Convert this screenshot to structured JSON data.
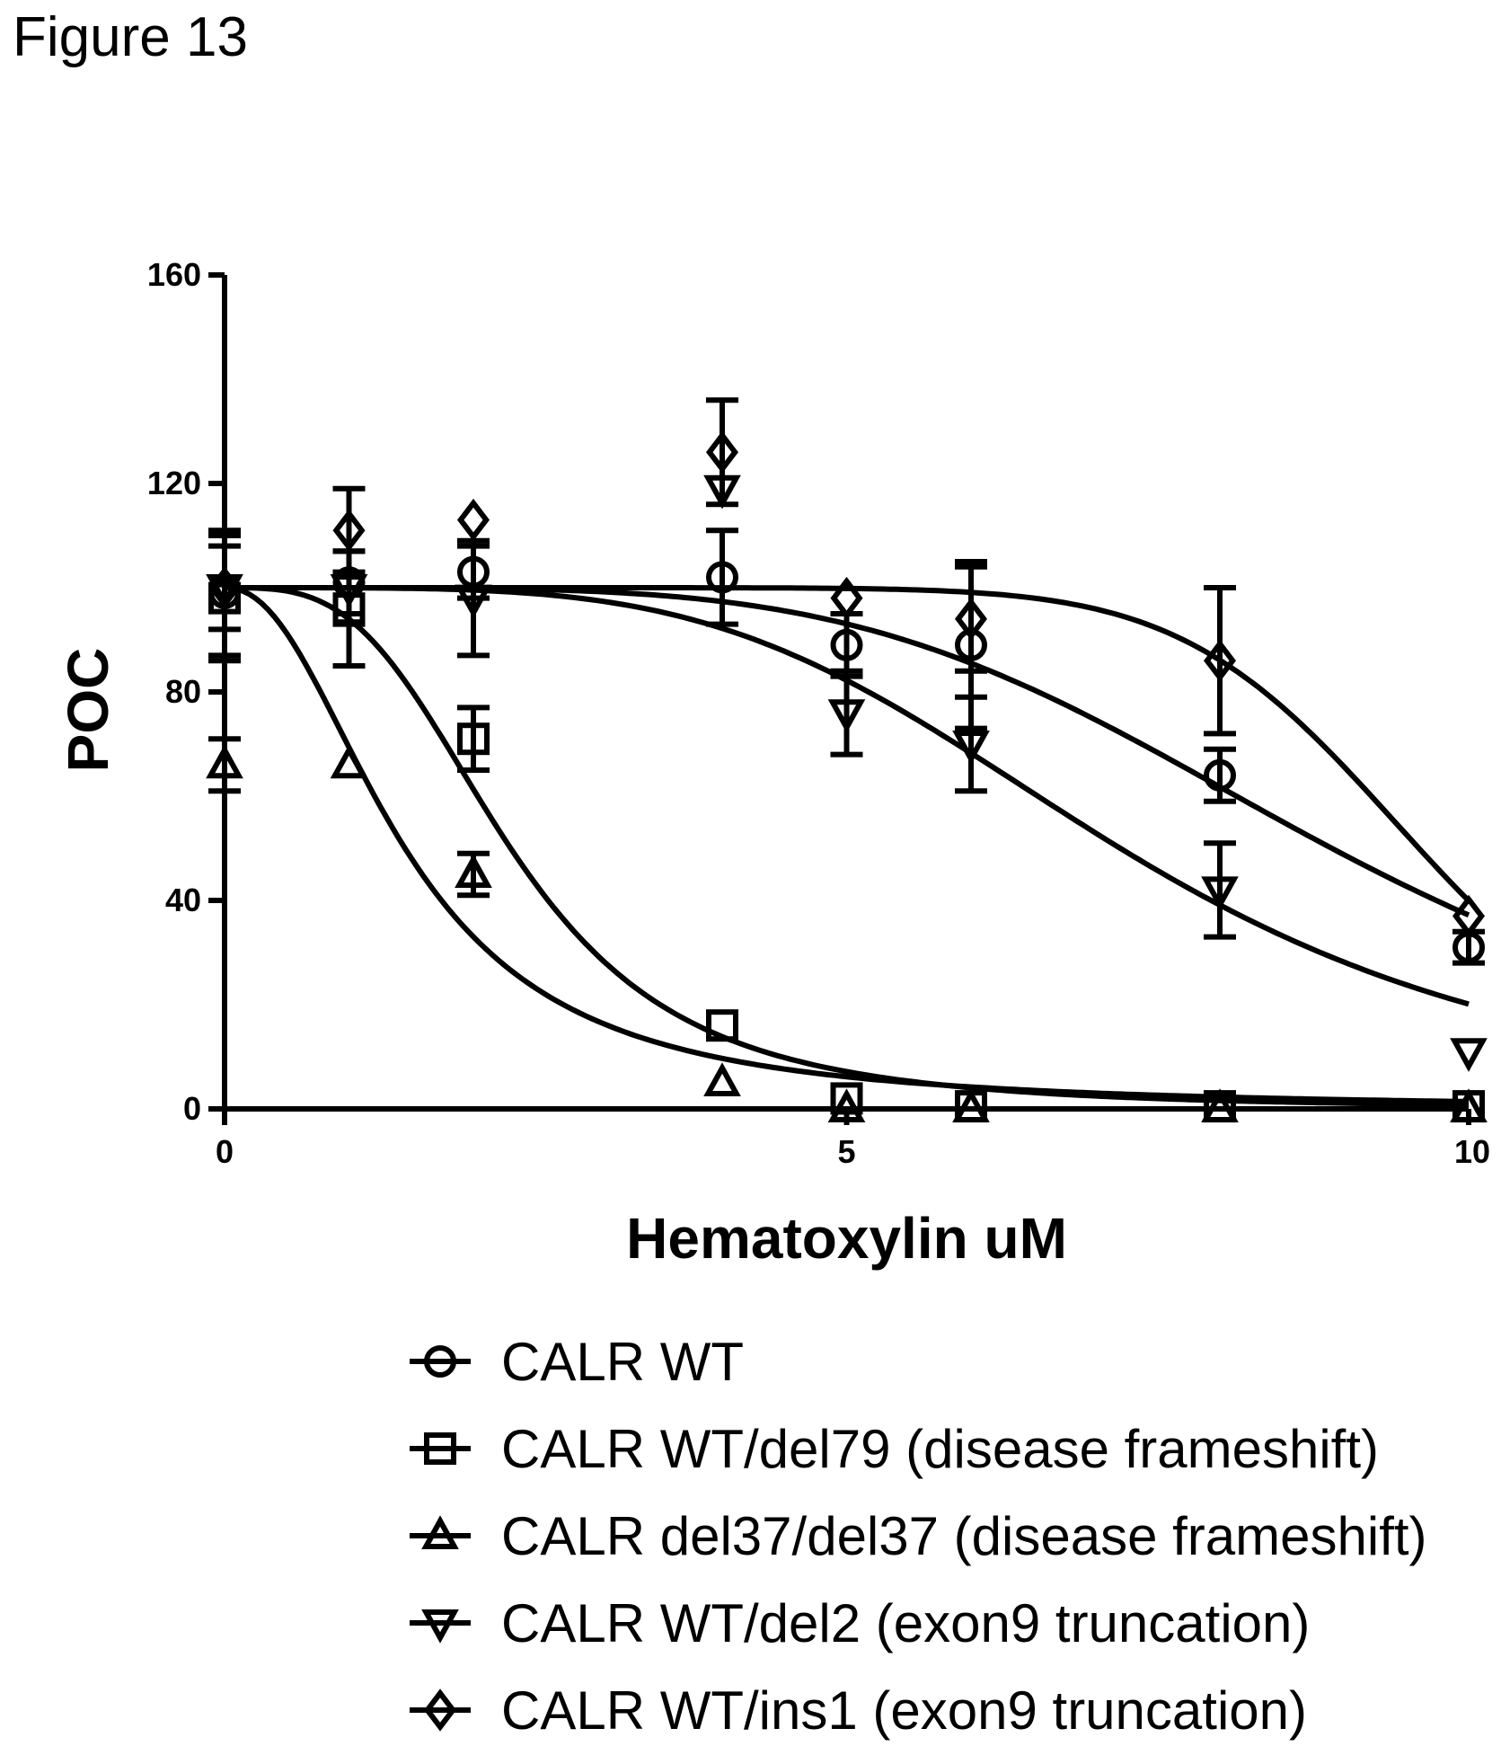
{
  "figure": {
    "title": "Figure 13"
  },
  "chart_data": {
    "type": "scatter",
    "xlabel": "Hematoxylin uM",
    "ylabel": "POC",
    "xlim": [
      0,
      10
    ],
    "ylim": [
      0,
      160
    ],
    "xticks": [
      "0",
      "5",
      "10"
    ],
    "yticks": [
      "0",
      "40",
      "80",
      "120",
      "160"
    ],
    "legend_position": "bottom",
    "fit": "four-parameter logistic (sigmoidal dose-response)",
    "series": [
      {
        "name": "CALR WT",
        "marker": "circle",
        "x": [
          0,
          1,
          2,
          4,
          5,
          6,
          8,
          10
        ],
        "y": [
          99,
          101,
          103,
          102,
          89,
          89,
          64,
          31
        ],
        "err": [
          12,
          6,
          5,
          9,
          6,
          16,
          5,
          3
        ],
        "fit": {
          "top": 100,
          "bottom": 0,
          "ic50": 8.9,
          "hill": 4.5
        }
      },
      {
        "name": "CALR WT/del79 (disease frameshift)",
        "marker": "square",
        "x": [
          0,
          1,
          2,
          4,
          5,
          6,
          8,
          10
        ],
        "y": [
          98,
          96,
          71,
          16,
          2,
          0.5,
          0.5,
          0.5
        ],
        "err": [
          12,
          11,
          6,
          0,
          0,
          0,
          0,
          0
        ],
        "fit": {
          "top": 100,
          "bottom": 0,
          "ic50": 2.3,
          "hill": 3.3
        }
      },
      {
        "name": "CALR del37/del37 (disease frameshift)",
        "marker": "triangle-up",
        "x": [
          0,
          1,
          2,
          4,
          5,
          6,
          8,
          10
        ],
        "y": [
          66,
          66,
          45,
          5,
          0,
          0,
          0,
          0
        ],
        "err": [
          5,
          0,
          4,
          0,
          0,
          0,
          0,
          0
        ],
        "fit": {
          "top": 100,
          "bottom": 0,
          "ic50": 1.45,
          "hill": 2.2
        }
      },
      {
        "name": "CALR WT/del2 (exon9 truncation)",
        "marker": "triangle-down",
        "x": [
          0,
          1,
          2,
          4,
          5,
          6,
          8,
          10
        ],
        "y": [
          100,
          100,
          98,
          119,
          76,
          70,
          42,
          11
        ],
        "err": [
          8,
          7,
          11,
          0,
          8,
          9,
          9,
          0
        ],
        "fit": {
          "top": 100,
          "bottom": 0,
          "ic50": 7.2,
          "hill": 4.2
        }
      },
      {
        "name": "CALR WT/ins1 (exon9 truncation)",
        "marker": "diamond",
        "x": [
          0,
          1,
          2,
          4,
          5,
          6,
          8,
          10
        ],
        "y": [
          100,
          111,
          113,
          126,
          98,
          94,
          86,
          37
        ],
        "err": [
          0,
          8,
          0,
          10,
          0,
          10,
          14,
          0
        ],
        "fit": {
          "top": 100,
          "bottom": 0,
          "ic50": 9.6,
          "hill": 10
        }
      }
    ]
  }
}
